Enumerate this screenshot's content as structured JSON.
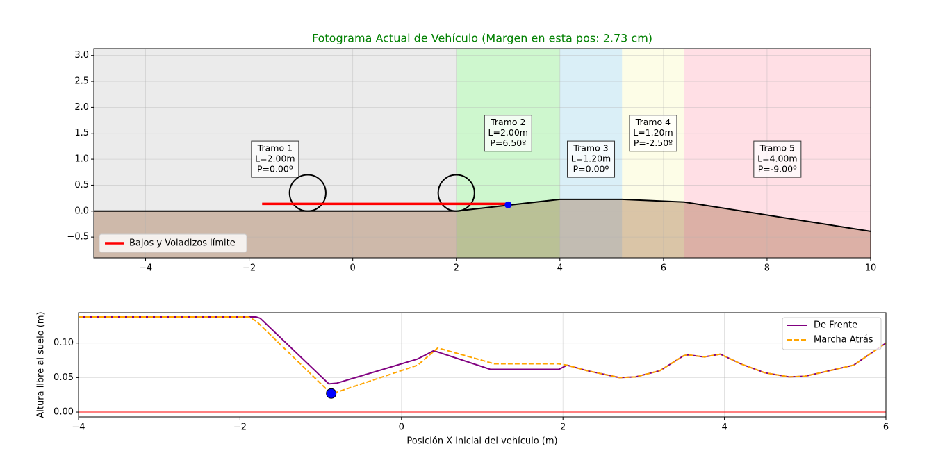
{
  "chart_data": [
    {
      "type": "profile",
      "title": "Fotograma Actual de Vehículo (Margen en esta pos: 2.73 cm)",
      "xlim": [
        -5,
        10
      ],
      "ylim": [
        -0.9,
        3.13
      ],
      "xticks": [
        {
          "value": -4,
          "label": "−4"
        },
        {
          "value": -2,
          "label": "−2"
        },
        0,
        2,
        4,
        6,
        8,
        10
      ],
      "yticks": [
        {
          "value": -0.5,
          "label": "−0.5"
        },
        {
          "value": 0,
          "label": "0.0"
        },
        {
          "value": 0.5,
          "label": "0.5"
        },
        {
          "value": 1,
          "label": "1.0"
        },
        {
          "value": 1.5,
          "label": "1.5"
        },
        {
          "value": 2,
          "label": "2.0"
        },
        {
          "value": 2.5,
          "label": "2.5"
        },
        {
          "value": 3,
          "label": "3.0"
        }
      ],
      "grid": true,
      "tramos": [
        {
          "start": -5,
          "end": 2,
          "label_y": 1.0,
          "color": "#d8d8d8",
          "lines": [
            "Tramo 1",
            "L=2.00m",
            "P=0.00º"
          ]
        },
        {
          "start": 2,
          "end": 4,
          "label_y": 1.5,
          "color": "#9ef09e",
          "lines": [
            "Tramo 2",
            "L=2.00m",
            "P=6.50º"
          ]
        },
        {
          "start": 4,
          "end": 5.2,
          "label_y": 1.0,
          "color": "#b5dff0",
          "lines": [
            "Tramo 3",
            "L=1.20m",
            "P=0.00º"
          ]
        },
        {
          "start": 5.2,
          "end": 6.4,
          "label_y": 1.5,
          "color": "#fbfbd0",
          "lines": [
            "Tramo 4",
            "L=1.20m",
            "P=-2.50º"
          ]
        },
        {
          "start": 6.4,
          "end": 10,
          "label_y": 1.0,
          "color": "#ffc0cb",
          "lines": [
            "Tramo 5",
            "L=4.00m",
            "P=-9.00º"
          ]
        }
      ],
      "terrain": {
        "color": "#000000",
        "fill": "#8b4513",
        "x": [
          -5,
          2,
          4,
          5.2,
          6.4,
          10
        ],
        "y": [
          0,
          0,
          0.227,
          0.227,
          0.175,
          -0.39
        ]
      },
      "wheels": {
        "color": "#000000",
        "x": [
          -0.87,
          2.0
        ],
        "y": 0.35,
        "r": 0.35
      },
      "limit_line": {
        "name": "Bajos y Voladizos límite",
        "color": "#ff0000",
        "x": [
          -1.75,
          3.0
        ],
        "y": 0.14
      },
      "point": {
        "color": "#0000ff",
        "x": 3.0,
        "y": 0.12
      },
      "legend": "lower left"
    },
    {
      "type": "line",
      "xlabel": "Posición X inicial del vehículo (m)",
      "ylabel": "Altura libre al suelo (m)",
      "xlim": [
        -4,
        6
      ],
      "ylim": [
        -0.007,
        0.144
      ],
      "xticks": [
        {
          "value": -4,
          "label": "−4"
        },
        {
          "value": -2,
          "label": "−2"
        },
        0,
        2,
        4,
        6
      ],
      "yticks": [
        {
          "value": 0,
          "label": "0.00"
        },
        {
          "value": 0.05,
          "label": "0.05"
        },
        {
          "value": 0.1,
          "label": "0.10"
        }
      ],
      "grid": true,
      "series": [
        {
          "name": "De Frente",
          "color": "#800080",
          "dash": false,
          "x": [
            -4,
            -1.8,
            -1.75,
            -0.9,
            -0.8,
            0.2,
            0.4,
            1.1,
            1.95,
            2.05,
            2.3,
            2.7,
            2.9,
            3.2,
            3.5,
            3.55,
            3.75,
            3.95,
            4.2,
            4.5,
            4.8,
            5.0,
            5.3,
            5.6,
            6.0
          ],
          "values": [
            0.138,
            0.138,
            0.136,
            0.041,
            0.042,
            0.077,
            0.089,
            0.062,
            0.062,
            0.068,
            0.06,
            0.05,
            0.051,
            0.06,
            0.082,
            0.083,
            0.08,
            0.084,
            0.07,
            0.057,
            0.051,
            0.052,
            0.06,
            0.068,
            0.1
          ]
        },
        {
          "name": "Marcha Atrás",
          "color": "#ffa500",
          "dash": true,
          "x": [
            -4,
            -1.9,
            -1.8,
            -0.9,
            -0.85,
            0.2,
            0.45,
            1.15,
            1.95,
            2.05,
            2.3,
            2.7,
            2.9,
            3.2,
            3.5,
            3.55,
            3.75,
            3.95,
            4.2,
            4.5,
            4.8,
            5.0,
            5.3,
            5.6,
            6.0
          ],
          "values": [
            0.138,
            0.138,
            0.132,
            0.03,
            0.027,
            0.068,
            0.093,
            0.07,
            0.07,
            0.068,
            0.06,
            0.05,
            0.051,
            0.06,
            0.082,
            0.083,
            0.08,
            0.084,
            0.07,
            0.057,
            0.051,
            0.052,
            0.06,
            0.068,
            0.1
          ]
        }
      ],
      "threshold": {
        "value": 0,
        "color": "#ff0000"
      },
      "point": {
        "color": "#0000ff",
        "x": -0.87,
        "y": 0.027
      },
      "legend": "upper right"
    }
  ]
}
